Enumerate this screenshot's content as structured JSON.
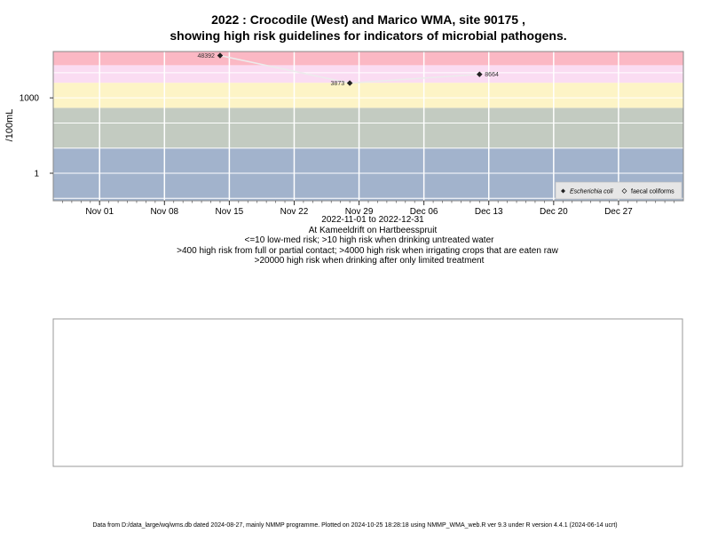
{
  "chart_data": {
    "type": "scatter",
    "title": "2022 : Crocodile (West) and Marico WMA, site 90175 ,",
    "subtitle": "showing high risk guidelines for indicators of microbial pathogens.",
    "ylabel": "/100mL",
    "y_scale": "log10",
    "ylim": [
      0.08,
      70000
    ],
    "xlim": [
      "2022-10-27",
      "2023-01-03"
    ],
    "x_ticks": [
      {
        "date": "2022-11-01",
        "label": "Nov 01"
      },
      {
        "date": "2022-11-08",
        "label": "Nov 08"
      },
      {
        "date": "2022-11-15",
        "label": "Nov 15"
      },
      {
        "date": "2022-11-22",
        "label": "Nov 22"
      },
      {
        "date": "2022-11-29",
        "label": "Nov 29"
      },
      {
        "date": "2022-12-06",
        "label": "Dec 06"
      },
      {
        "date": "2022-12-13",
        "label": "Dec 13"
      },
      {
        "date": "2022-12-20",
        "label": "Dec 20"
      },
      {
        "date": "2022-12-27",
        "label": "Dec 27"
      }
    ],
    "y_ticks": [
      {
        "value": 1,
        "label": "1"
      },
      {
        "value": 1000,
        "label": "1000"
      }
    ],
    "grid": true,
    "legend_position": "bottom-right",
    "risk_bands": [
      {
        "from": 0.08,
        "to": 10,
        "color": "#a2b3cc"
      },
      {
        "from": 10,
        "to": 400,
        "color": "#c3cbc1"
      },
      {
        "from": 400,
        "to": 4000,
        "color": "#fdf4c6"
      },
      {
        "from": 4000,
        "to": 20000,
        "color": "#fadcf2"
      },
      {
        "from": 20000,
        "to": 70000,
        "color": "#fbb8c4"
      }
    ],
    "series": [
      {
        "name": "Escherichia coli",
        "marker": "filled-diamond",
        "color": "#222222",
        "line_color": "#ececec",
        "points": [
          {
            "x": "2022-11-14",
            "y": 48392,
            "label": "48392",
            "label_side": "left"
          },
          {
            "x": "2022-11-28",
            "y": 3873,
            "label": "3873",
            "label_side": "left"
          },
          {
            "x": "2022-12-12",
            "y": 8664,
            "label": "8664",
            "label_side": "right"
          }
        ]
      },
      {
        "name": "faecal coliforms",
        "marker": "open-diamond",
        "color": "#222222",
        "points": []
      }
    ],
    "notes": [
      "2022-11-01 to 2022-12-31",
      "At Kameeldrift on Hartbeesspruit",
      "<=10 low-med risk; >10 high risk when drinking untreated water",
      ">400 high risk from full or partial contact; >4000 high risk when irrigating crops that are eaten raw",
      ">20000 high risk when drinking after only limited treatment"
    ]
  },
  "footer": "Data from D:/data_large/wq/wms.db dated 2024-08-27, mainly NMMP programme. Plotted on 2024-10-25 18:28:18 using NMMP_WMA_web.R ver 9.3 under R version 4.4.1 (2024-06-14 ucrt)"
}
